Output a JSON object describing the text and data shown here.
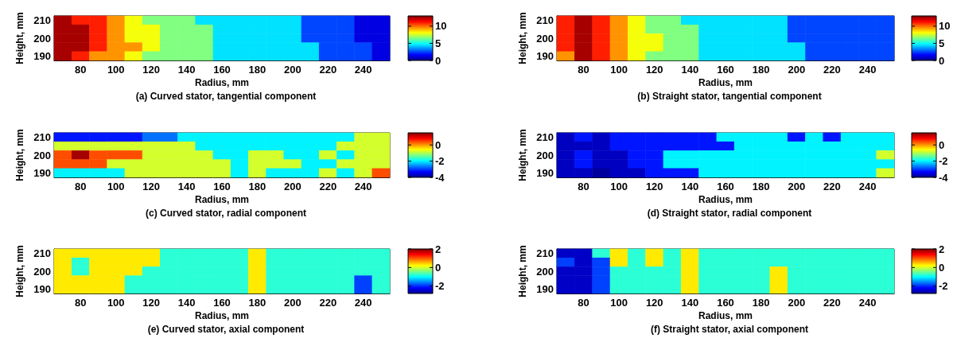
{
  "chart_data": [
    {
      "type": "heatmap",
      "title": "(a) Curved stator, tangential component",
      "xlabel": "Radius, mm",
      "ylabel": "Height, mm",
      "categories": [
        null,
        "80",
        null,
        "100",
        null,
        "120",
        null,
        "140",
        null,
        "160",
        null,
        "180",
        null,
        "200",
        null,
        "220",
        null,
        "240",
        null
      ],
      "y_categories": [
        "210",
        null,
        "200",
        null,
        "190"
      ],
      "clim": [
        0,
        13
      ],
      "cticks": [
        0,
        5,
        10
      ],
      "cells": [
        [
          12.5,
          11,
          11,
          9.5,
          8,
          6.5,
          6.5,
          6.5,
          4.5,
          4.5,
          4.5,
          4.5,
          4.5,
          4.5,
          2.5,
          2.5,
          2.5,
          1.2,
          1.2
        ],
        [
          12.5,
          12.5,
          11,
          9.5,
          8,
          8,
          6.5,
          6.5,
          6.5,
          4.5,
          4.5,
          4.5,
          4.5,
          4.5,
          2.5,
          2.5,
          2.5,
          1.2,
          1.2
        ],
        [
          12.5,
          12.5,
          11,
          9.5,
          8,
          8,
          6.5,
          6.5,
          6.5,
          4.5,
          4.5,
          4.5,
          4.5,
          4.5,
          2.5,
          2.5,
          2.5,
          1.2,
          1.2
        ],
        [
          12.5,
          12.5,
          11,
          9.5,
          9.5,
          8,
          6.5,
          6.5,
          6.5,
          4.5,
          4.5,
          4.5,
          4.5,
          4.5,
          4.5,
          2.5,
          2.5,
          2.5,
          1.2
        ],
        [
          12.5,
          11,
          9.5,
          9.5,
          8,
          6.5,
          6.5,
          6.5,
          6.5,
          4.5,
          4.5,
          4.5,
          4.5,
          4.5,
          4.5,
          2.5,
          2.5,
          2.5,
          1.2
        ]
      ]
    },
    {
      "type": "heatmap",
      "title": "(b) Straight stator, tangential component",
      "xlabel": "Radius, mm",
      "ylabel": "Height, mm",
      "categories": [
        null,
        "80",
        null,
        "100",
        null,
        "120",
        null,
        "140",
        null,
        "160",
        null,
        "180",
        null,
        "200",
        null,
        "220",
        null,
        "240",
        null
      ],
      "y_categories": [
        "210",
        null,
        "200",
        null,
        "190"
      ],
      "clim": [
        0,
        13
      ],
      "cticks": [
        0,
        5,
        10
      ],
      "cells": [
        [
          11,
          12.5,
          11,
          9.5,
          8,
          6.5,
          6.5,
          4.5,
          4.5,
          4.5,
          4.5,
          4.5,
          4.5,
          2.5,
          2.5,
          2.5,
          2.5,
          2.5,
          2.5
        ],
        [
          11,
          12.5,
          11,
          9.5,
          8,
          6.5,
          6.5,
          6.5,
          4.5,
          4.5,
          4.5,
          4.5,
          4.5,
          2.5,
          2.5,
          2.5,
          2.5,
          2.5,
          2.5
        ],
        [
          11,
          12.5,
          11,
          9.5,
          8,
          8,
          6.5,
          6.5,
          4.5,
          4.5,
          4.5,
          4.5,
          4.5,
          2.5,
          2.5,
          2.5,
          2.5,
          2.5,
          2.5
        ],
        [
          11,
          12.5,
          11,
          9.5,
          8,
          8,
          6.5,
          6.5,
          4.5,
          4.5,
          4.5,
          4.5,
          4.5,
          4.5,
          2.5,
          2.5,
          2.5,
          2.5,
          2.5
        ],
        [
          9.5,
          12.5,
          11,
          9.5,
          8,
          6.5,
          6.5,
          6.5,
          4.5,
          4.5,
          4.5,
          4.5,
          4.5,
          4.5,
          2.5,
          2.5,
          2.5,
          2.5,
          2.5
        ]
      ]
    },
    {
      "type": "heatmap",
      "title": "(c) Curved stator, radial component",
      "xlabel": "Radius, mm",
      "ylabel": "Height, mm",
      "categories": [
        null,
        "80",
        null,
        "100",
        null,
        "120",
        null,
        "140",
        null,
        "160",
        null,
        "180",
        null,
        "200",
        null,
        "220",
        null,
        "240",
        null
      ],
      "y_categories": [
        "210",
        null,
        "200",
        null,
        "190"
      ],
      "clim": [
        -4,
        1.5
      ],
      "cticks": [
        -4,
        -2,
        0
      ],
      "cells": [
        [
          -3.2,
          -3.2,
          -3.2,
          -3.2,
          -3.2,
          -2.7,
          -2.7,
          -2,
          -2,
          -2,
          -2,
          -2,
          -2,
          -2,
          -2,
          -2,
          -2,
          -0.8,
          -0.8
        ],
        [
          -0.8,
          -0.8,
          -0.8,
          -0.8,
          -0.8,
          -0.8,
          -0.8,
          -0.8,
          -2,
          -2,
          -2,
          -2,
          -2,
          -2,
          -2,
          -2,
          -0.8,
          -0.8,
          -0.8
        ],
        [
          0.4,
          1.3,
          0.4,
          0.4,
          0.4,
          -0.8,
          -0.8,
          -0.8,
          -0.8,
          -2,
          -2,
          -0.8,
          -0.8,
          -2,
          -2,
          -0.8,
          -2,
          -0.8,
          -0.8
        ],
        [
          0.4,
          0.4,
          0.4,
          -0.8,
          -0.8,
          -0.8,
          -0.8,
          -0.8,
          -0.8,
          -0.8,
          -2,
          -0.8,
          -0.8,
          -0.8,
          -2,
          -2,
          -0.8,
          -0.8,
          -0.8
        ],
        [
          -2,
          -2,
          -2,
          -2,
          -0.8,
          -0.8,
          -0.8,
          -0.8,
          -0.8,
          -0.8,
          -2,
          -0.8,
          -2,
          -2,
          -2,
          -0.8,
          -2,
          -0.8,
          0.4
        ]
      ]
    },
    {
      "type": "heatmap",
      "title": "(d) Straight stator, radial component",
      "xlabel": "Radius, mm",
      "ylabel": "Height, mm",
      "categories": [
        null,
        "80",
        null,
        "100",
        null,
        "120",
        null,
        "140",
        null,
        "160",
        null,
        "180",
        null,
        "200",
        null,
        "220",
        null,
        "240",
        null
      ],
      "y_categories": [
        "210",
        null,
        "200",
        null,
        "190"
      ],
      "clim": [
        -4,
        1.5
      ],
      "cticks": [
        -4,
        -2,
        0
      ],
      "cells": [
        [
          -3.7,
          -3.2,
          -3.7,
          -3.2,
          -3.2,
          -3.2,
          -3.2,
          -3.2,
          -3.2,
          -2,
          -2,
          -2,
          -2,
          -3.2,
          -2,
          -3.2,
          -2,
          -2,
          -2
        ],
        [
          -3.7,
          -3.7,
          -3.7,
          -3.2,
          -3.2,
          -3.2,
          -3.2,
          -3.2,
          -3.2,
          -3.2,
          -2,
          -2,
          -2,
          -2,
          -2,
          -2,
          -2,
          -2,
          -2
        ],
        [
          -3.7,
          -3.2,
          -3.7,
          -3.7,
          -3.2,
          -3.2,
          -2,
          -2,
          -2,
          -2,
          -2,
          -2,
          -2,
          -2,
          -2,
          -2,
          -2,
          -2,
          -0.8
        ],
        [
          -3.7,
          -3.2,
          -3.7,
          -3.7,
          -3.2,
          -3.2,
          -2,
          -2,
          -2,
          -2,
          -2,
          -2,
          -2,
          -2,
          -2,
          -2,
          -2,
          -2,
          -2
        ],
        [
          -3.7,
          -3.7,
          -3.9,
          -3.7,
          -3.7,
          -3.2,
          -3.2,
          -3.2,
          -2,
          -2,
          -2,
          -2,
          -2,
          -2,
          -2,
          -2,
          -2,
          -2,
          -0.8
        ]
      ]
    },
    {
      "type": "heatmap",
      "title": "(e) Curved stator, axial component",
      "xlabel": "Radius, mm",
      "ylabel": "Height, mm",
      "categories": [
        null,
        "80",
        null,
        "100",
        null,
        "120",
        null,
        "140",
        null,
        "160",
        null,
        "180",
        null,
        "200",
        null,
        "220",
        null,
        "240",
        null
      ],
      "y_categories": [
        "210",
        null,
        "200",
        null,
        "190"
      ],
      "clim": [
        -2.8,
        2
      ],
      "cticks": [
        -2,
        0,
        2
      ],
      "cells": [
        [
          0.3,
          0.3,
          0.3,
          0.3,
          0.3,
          0.3,
          -0.8,
          -0.8,
          -0.8,
          -0.8,
          -0.8,
          0.3,
          -0.8,
          -0.8,
          -0.8,
          -0.8,
          -0.8,
          -0.8,
          -0.8
        ],
        [
          0.3,
          -0.8,
          0.3,
          0.3,
          0.3,
          0.3,
          -0.8,
          -0.8,
          -0.8,
          -0.8,
          -0.8,
          0.3,
          -0.8,
          -0.8,
          -0.8,
          -0.8,
          -0.8,
          -0.8,
          -0.8
        ],
        [
          0.3,
          -0.8,
          0.3,
          0.3,
          0.3,
          -0.8,
          -0.8,
          -0.8,
          -0.8,
          -0.8,
          -0.8,
          0.3,
          -0.8,
          -0.8,
          -0.8,
          -0.8,
          -0.8,
          -0.8,
          -0.8
        ],
        [
          0.3,
          0.3,
          0.3,
          0.3,
          -0.8,
          -0.8,
          -0.8,
          -0.8,
          -0.8,
          -0.8,
          -0.8,
          0.3,
          -0.8,
          -0.8,
          -0.8,
          -0.8,
          -0.8,
          -1.9,
          -0.8
        ],
        [
          0.3,
          0.3,
          0.3,
          0.3,
          -0.8,
          -0.8,
          -0.8,
          -0.8,
          -0.8,
          -0.8,
          -0.8,
          0.3,
          -0.8,
          -0.8,
          -0.8,
          -0.8,
          -0.8,
          -1.9,
          -0.8
        ]
      ]
    },
    {
      "type": "heatmap",
      "title": "(f) Straight stator, axial component",
      "xlabel": "Radius, mm",
      "ylabel": "Height, mm",
      "categories": [
        null,
        "80",
        null,
        "100",
        null,
        "120",
        null,
        "140",
        null,
        "160",
        null,
        "180",
        null,
        "200",
        null,
        "220",
        null,
        "240",
        null
      ],
      "y_categories": [
        "210",
        null,
        "200",
        null,
        "190"
      ],
      "clim": [
        -2.8,
        2
      ],
      "cticks": [
        -2,
        0,
        2
      ],
      "cells": [
        [
          -2.5,
          -2.5,
          -0.8,
          0.3,
          -0.8,
          0.3,
          -0.8,
          0.3,
          -0.8,
          -0.8,
          -0.8,
          -0.8,
          -0.8,
          -0.8,
          -0.8,
          -0.8,
          -0.8,
          -0.8,
          -0.8
        ],
        [
          -1.9,
          -2.5,
          -1.9,
          0.3,
          -0.8,
          0.3,
          -0.8,
          0.3,
          -0.8,
          -0.8,
          -0.8,
          -0.8,
          -0.8,
          -0.8,
          -0.8,
          -0.8,
          -0.8,
          -0.8,
          -0.8
        ],
        [
          -2.5,
          -2.5,
          -1.9,
          -0.8,
          -0.8,
          -0.8,
          -0.8,
          0.3,
          -0.8,
          -0.8,
          -0.8,
          -0.8,
          0.3,
          -0.8,
          -0.8,
          -0.8,
          -0.8,
          -0.8,
          -0.8
        ],
        [
          -2.5,
          -2.5,
          -1.9,
          -0.8,
          -0.8,
          -0.8,
          -0.8,
          0.3,
          -0.8,
          -0.8,
          -0.8,
          -0.8,
          0.3,
          -0.8,
          -0.8,
          -0.8,
          -0.8,
          -0.8,
          -0.8
        ],
        [
          -2.5,
          -2.5,
          -1.9,
          -0.8,
          -0.8,
          -0.8,
          -0.8,
          0.3,
          -0.8,
          -0.8,
          -0.8,
          -0.8,
          0.3,
          -0.8,
          -0.8,
          -0.8,
          -0.8,
          -0.8,
          -0.8
        ]
      ]
    }
  ]
}
